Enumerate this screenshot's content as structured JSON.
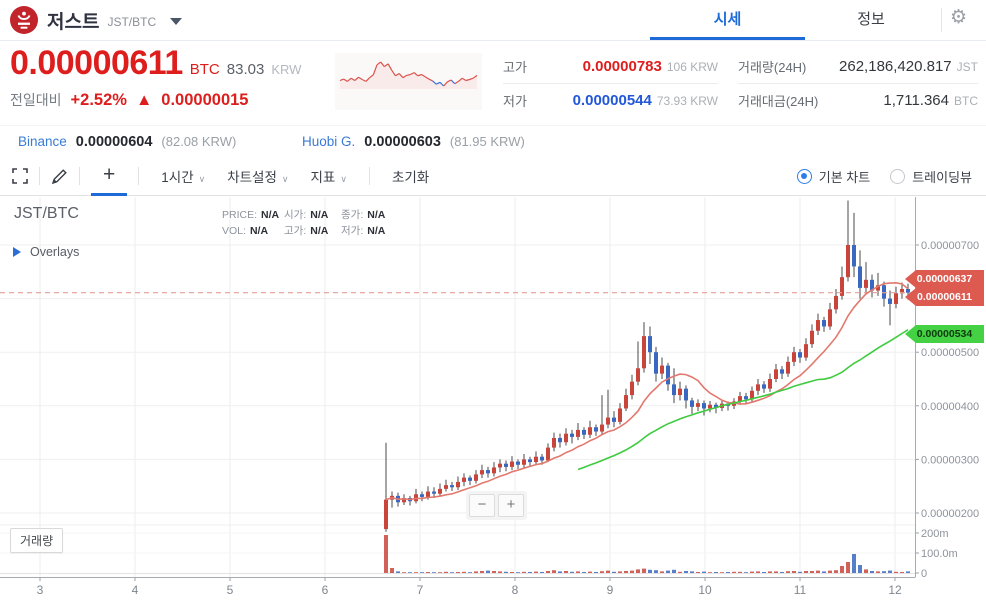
{
  "header": {
    "coin_name": "저스트",
    "pair": "JST/BTC",
    "tabs": [
      {
        "label": "시세",
        "active": true
      },
      {
        "label": "정보",
        "active": false
      }
    ]
  },
  "ticker": {
    "price": "0.00000611",
    "price_unit": "BTC",
    "krw_price": "83.03",
    "krw_unit": "KRW",
    "change_label": "전일대비",
    "change_pct": "+2.52%",
    "change_dir": "▲",
    "change_abs": "0.00000015"
  },
  "stats": {
    "high_label": "고가",
    "high_value": "0.00000783",
    "high_krw": "106 KRW",
    "low_label": "저가",
    "low_value": "0.00000544",
    "low_krw": "73.93 KRW",
    "volume_label": "거래량(24H)",
    "volume_value": "262,186,420.817",
    "volume_unit": "JST",
    "turnover_label": "거래대금(24H)",
    "turnover_value": "1,711.364",
    "turnover_unit": "BTC"
  },
  "exchanges": [
    {
      "name": "Binance",
      "price": "0.00000604",
      "krw": "(82.08 KRW)"
    },
    {
      "name": "Huobi G.",
      "price": "0.00000603",
      "krw": "(81.95 KRW)"
    }
  ],
  "toolbar": {
    "interval": "1시간",
    "settings": "차트설정",
    "indicators": "지표",
    "reset": "초기화",
    "caret": "∨",
    "chart_type_options": [
      {
        "label": "기본 차트",
        "selected": true
      },
      {
        "label": "트레이딩뷰",
        "selected": false
      }
    ]
  },
  "chart": {
    "symbol": "JST/BTC",
    "legend": {
      "price_label": "PRICE:",
      "open_label": "시가:",
      "close_label": "종가:",
      "vol_label": "VOL:",
      "high_label": "고가:",
      "low_label": "저가:",
      "na": "N/A"
    },
    "overlays_label": "Overlays",
    "volume_label": "거래량",
    "zoom_out": "−",
    "zoom_in": "+"
  },
  "colors": {
    "up": "#c9453c",
    "down": "#3a67c0",
    "ma_short": "#e2796e",
    "ma_long": "#3fcb3f",
    "accent_blue": "#1e6bd7",
    "price_red": "#de1d1d",
    "low_blue": "#2257d6",
    "tag_red": "#dd5a50",
    "tag_green": "#44d244"
  },
  "chart_data": {
    "type": "candlestick",
    "interval": "1시간",
    "x_labels": [
      "3",
      "4",
      "5",
      "6",
      "7",
      "8",
      "9",
      "10",
      "11",
      "12"
    ],
    "y_ticks": [
      {
        "label": "0.00000700",
        "value": 700
      },
      {
        "label": "0.00000600",
        "value": 600
      },
      {
        "label": "0.00000500",
        "value": 500
      },
      {
        "label": "0.00000400",
        "value": 400
      },
      {
        "label": "0.00000300",
        "value": 300
      },
      {
        "label": "0.00000200",
        "value": 200
      }
    ],
    "volume_ticks": [
      {
        "label": "200m",
        "value": 200
      },
      {
        "label": "100.0m",
        "value": 100
      },
      {
        "label": "0",
        "value": 0
      }
    ],
    "current_price": 611,
    "price_tags": [
      {
        "label": "0.00000637",
        "value": 637,
        "style": "red"
      },
      {
        "label": "0.00000611",
        "value": 611,
        "style": "red"
      },
      {
        "label": "0.00000534",
        "value": 534,
        "style": "green"
      }
    ],
    "candles": [
      [
        170,
        225,
        165,
        331
      ],
      [
        225,
        232,
        210,
        240
      ],
      [
        232,
        220,
        212,
        238
      ],
      [
        220,
        228,
        215,
        235
      ],
      [
        228,
        222,
        214,
        232
      ],
      [
        222,
        235,
        218,
        245
      ],
      [
        235,
        230,
        222,
        240
      ],
      [
        230,
        240,
        225,
        250
      ],
      [
        240,
        236,
        228,
        248
      ],
      [
        236,
        245,
        230,
        255
      ],
      [
        245,
        252,
        240,
        262
      ],
      [
        252,
        248,
        241,
        258
      ],
      [
        248,
        258,
        243,
        268
      ],
      [
        258,
        266,
        250,
        274
      ],
      [
        266,
        260,
        252,
        270
      ],
      [
        260,
        272,
        255,
        280
      ],
      [
        272,
        280,
        265,
        290
      ],
      [
        280,
        274,
        266,
        286
      ],
      [
        274,
        285,
        268,
        295
      ],
      [
        285,
        292,
        276,
        300
      ],
      [
        292,
        286,
        278,
        298
      ],
      [
        286,
        296,
        280,
        306
      ],
      [
        296,
        290,
        282,
        300
      ],
      [
        290,
        300,
        284,
        310
      ],
      [
        300,
        295,
        286,
        305
      ],
      [
        295,
        305,
        290,
        315
      ],
      [
        305,
        298,
        290,
        310
      ],
      [
        298,
        322,
        295,
        330
      ],
      [
        322,
        340,
        315,
        350
      ],
      [
        340,
        332,
        322,
        348
      ],
      [
        332,
        348,
        326,
        358
      ],
      [
        348,
        342,
        330,
        355
      ],
      [
        342,
        355,
        336,
        368
      ],
      [
        355,
        346,
        338,
        360
      ],
      [
        346,
        360,
        340,
        372
      ],
      [
        360,
        352,
        344,
        365
      ],
      [
        352,
        365,
        346,
        420
      ],
      [
        365,
        378,
        358,
        430
      ],
      [
        378,
        370,
        360,
        390
      ],
      [
        370,
        395,
        365,
        405
      ],
      [
        395,
        420,
        390,
        432
      ],
      [
        420,
        445,
        412,
        458
      ],
      [
        445,
        470,
        438,
        520
      ],
      [
        470,
        530,
        462,
        556
      ],
      [
        530,
        500,
        478,
        548
      ],
      [
        500,
        460,
        445,
        510
      ],
      [
        460,
        475,
        450,
        490
      ],
      [
        475,
        440,
        428,
        480
      ],
      [
        440,
        420,
        405,
        470
      ],
      [
        420,
        432,
        410,
        445
      ],
      [
        432,
        410,
        395,
        438
      ],
      [
        410,
        398,
        385,
        415
      ],
      [
        398,
        405,
        390,
        412
      ],
      [
        405,
        395,
        382,
        410
      ],
      [
        395,
        402,
        388,
        409
      ],
      [
        402,
        396,
        386,
        406
      ],
      [
        396,
        404,
        390,
        411
      ],
      [
        404,
        400,
        391,
        408
      ],
      [
        400,
        408,
        394,
        414
      ],
      [
        408,
        418,
        402,
        426
      ],
      [
        418,
        412,
        404,
        424
      ],
      [
        412,
        428,
        406,
        436
      ],
      [
        428,
        440,
        420,
        450
      ],
      [
        440,
        432,
        424,
        446
      ],
      [
        432,
        450,
        426,
        460
      ],
      [
        450,
        468,
        444,
        478
      ],
      [
        468,
        460,
        450,
        474
      ],
      [
        460,
        482,
        454,
        492
      ],
      [
        482,
        500,
        474,
        510
      ],
      [
        500,
        490,
        480,
        506
      ],
      [
        490,
        515,
        484,
        526
      ],
      [
        515,
        540,
        508,
        552
      ],
      [
        540,
        560,
        532,
        572
      ],
      [
        560,
        548,
        538,
        566
      ],
      [
        548,
        580,
        542,
        592
      ],
      [
        580,
        605,
        572,
        618
      ],
      [
        605,
        640,
        598,
        660
      ],
      [
        640,
        700,
        632,
        783
      ],
      [
        700,
        660,
        640,
        760
      ],
      [
        660,
        620,
        600,
        690
      ],
      [
        620,
        635,
        610,
        668
      ],
      [
        635,
        615,
        602,
        645
      ],
      [
        615,
        625,
        605,
        648
      ],
      [
        625,
        600,
        585,
        632
      ],
      [
        600,
        590,
        550,
        615
      ],
      [
        590,
        610,
        582,
        622
      ],
      [
        610,
        618,
        600,
        630
      ],
      [
        618,
        611,
        598,
        628
      ]
    ],
    "volumes": [
      190,
      25,
      8,
      4,
      3,
      4,
      3,
      5,
      3,
      4,
      6,
      4,
      5,
      6,
      4,
      8,
      10,
      12,
      10,
      8,
      6,
      5,
      4,
      6,
      5,
      7,
      5,
      10,
      14,
      8,
      10,
      6,
      8,
      5,
      7,
      5,
      9,
      12,
      6,
      8,
      10,
      12,
      18,
      22,
      16,
      14,
      8,
      12,
      16,
      6,
      10,
      8,
      5,
      7,
      4,
      5,
      4,
      5,
      6,
      6,
      4,
      7,
      8,
      5,
      8,
      8,
      5,
      9,
      10,
      6,
      10,
      10,
      12,
      8,
      12,
      14,
      35,
      55,
      95,
      40,
      18,
      10,
      8,
      9,
      12,
      6,
      5,
      8
    ],
    "sparkline": {
      "values": [
        600,
        603,
        598,
        605,
        600,
        607,
        602,
        598,
        606,
        612,
        634,
        640,
        630,
        636,
        622,
        610,
        615,
        606,
        611,
        613,
        617,
        610,
        613,
        608,
        603,
        599,
        592,
        596,
        588,
        597,
        601,
        593,
        598,
        605,
        600,
        602,
        605,
        611
      ],
      "blue_threshold": 597
    }
  }
}
